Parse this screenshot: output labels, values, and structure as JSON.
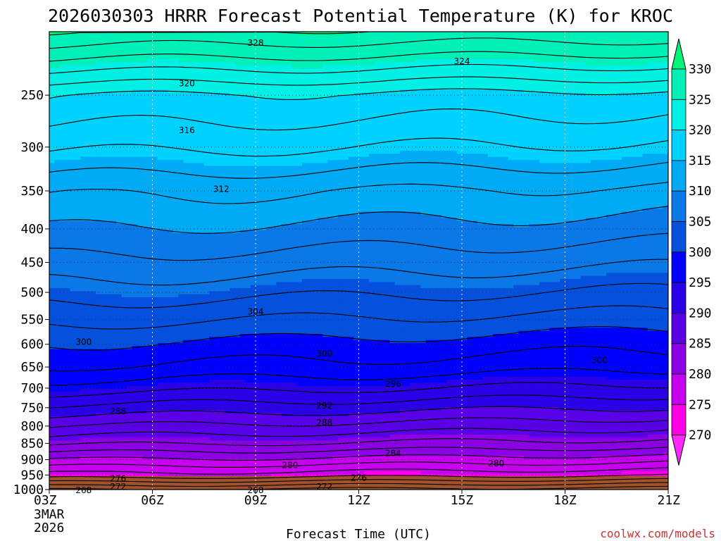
{
  "chart_data": {
    "type": "heatmap",
    "title": "2026030303 HRRR Forecast Potential Temperature (K) for KROC",
    "xlabel": "Forecast Time (UTC)",
    "ylabel": "",
    "x_ticks": [
      "03Z",
      "06Z",
      "09Z",
      "12Z",
      "15Z",
      "18Z",
      "21Z"
    ],
    "x_start_lines": [
      "3MAR",
      "2026"
    ],
    "y_ticks": [
      250,
      300,
      350,
      400,
      450,
      500,
      550,
      600,
      650,
      700,
      750,
      800,
      850,
      900,
      950,
      1000
    ],
    "ylim": [
      1000,
      200
    ],
    "y_scale": "log-pressure",
    "x_range": [
      "2026-03-03T03:00Z",
      "2026-03-03T21:00Z"
    ],
    "grid": true,
    "colorbar": {
      "labels": [
        330,
        325,
        320,
        315,
        310,
        305,
        300,
        295,
        290,
        285,
        280,
        275,
        270
      ],
      "colors": [
        "#00f57a",
        "#00f0b8",
        "#00f0e6",
        "#00d2ff",
        "#00aaf5",
        "#0a78e6",
        "#0550dc",
        "#0000ff",
        "#2a00e6",
        "#5a00e6",
        "#8c00e6",
        "#c800f0",
        "#ff00e6",
        "#ff28ff"
      ]
    },
    "contour_labels": [
      {
        "value": "328",
        "time": "2026-03-03T09:00Z",
        "pressure": 208
      },
      {
        "value": "324",
        "time": "2026-03-03T15:00Z",
        "pressure": 222
      },
      {
        "value": "320",
        "time": "2026-03-03T07:00Z",
        "pressure": 240
      },
      {
        "value": "316",
        "time": "2026-03-03T07:00Z",
        "pressure": 283
      },
      {
        "value": "312",
        "time": "2026-03-03T08:00Z",
        "pressure": 348
      },
      {
        "value": "304",
        "time": "2026-03-03T09:00Z",
        "pressure": 535
      },
      {
        "value": "300",
        "time": "2026-03-03T04:00Z",
        "pressure": 595
      },
      {
        "value": "300",
        "time": "2026-03-03T11:00Z",
        "pressure": 620
      },
      {
        "value": "300",
        "time": "2026-03-03T19:00Z",
        "pressure": 635
      },
      {
        "value": "296",
        "time": "2026-03-03T13:00Z",
        "pressure": 690
      },
      {
        "value": "292",
        "time": "2026-03-03T11:00Z",
        "pressure": 745
      },
      {
        "value": "288",
        "time": "2026-03-03T05:00Z",
        "pressure": 760
      },
      {
        "value": "288",
        "time": "2026-03-03T11:00Z",
        "pressure": 790
      },
      {
        "value": "284",
        "time": "2026-03-03T13:00Z",
        "pressure": 880
      },
      {
        "value": "280",
        "time": "2026-03-03T10:00Z",
        "pressure": 918
      },
      {
        "value": "280",
        "time": "2026-03-03T16:00Z",
        "pressure": 912
      },
      {
        "value": "276",
        "time": "2026-03-03T05:00Z",
        "pressure": 962
      },
      {
        "value": "276",
        "time": "2026-03-03T12:00Z",
        "pressure": 960
      },
      {
        "value": "272",
        "time": "2026-03-03T05:00Z",
        "pressure": 990
      },
      {
        "value": "272",
        "time": "2026-03-03T11:00Z",
        "pressure": 990
      },
      {
        "value": "268",
        "time": "2026-03-03T04:00Z",
        "pressure": 1003
      },
      {
        "value": "268",
        "time": "2026-03-03T09:00Z",
        "pressure": 1003
      }
    ]
  },
  "watermark": "coolwx.com/models"
}
